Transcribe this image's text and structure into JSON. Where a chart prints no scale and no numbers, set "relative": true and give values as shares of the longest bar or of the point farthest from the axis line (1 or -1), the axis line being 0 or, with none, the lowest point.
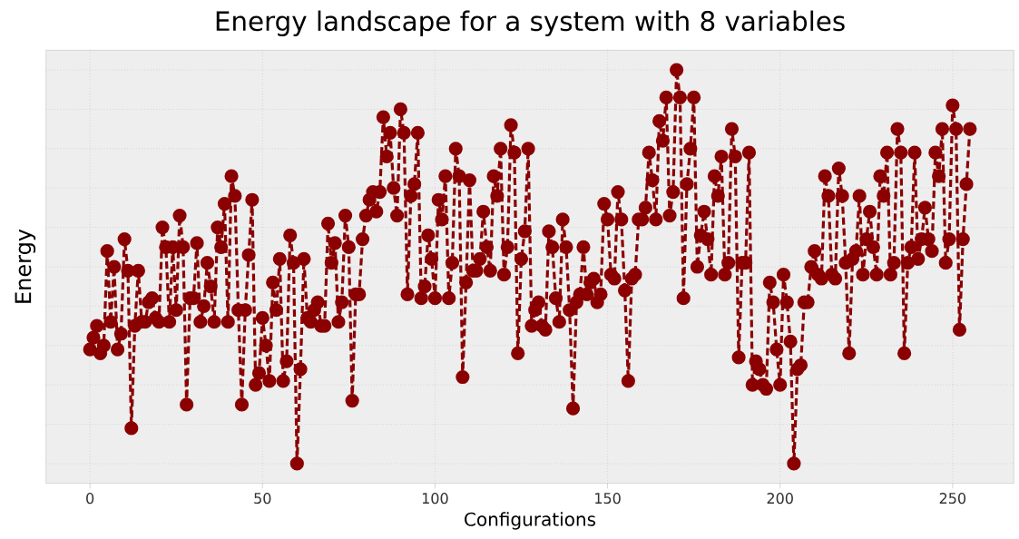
{
  "chart_data": {
    "type": "line",
    "title": "Energy landscape for a system with 8 variables",
    "xlabel": "Configurations",
    "ylabel": "Energy",
    "relative": true,
    "color": "#8b0000",
    "marker": "circle",
    "line_style": "dashed",
    "grid": true,
    "tick_labels": "x",
    "xlim": [
      -12.75,
      267.75
    ],
    "xticks": [
      0,
      50,
      100,
      150,
      200,
      250
    ],
    "x": [
      0,
      1,
      2,
      3,
      4,
      5,
      6,
      7,
      8,
      9,
      10,
      11,
      12,
      13,
      14,
      15,
      16,
      17,
      18,
      19,
      20,
      21,
      22,
      23,
      24,
      25,
      26,
      27,
      28,
      29,
      30,
      31,
      32,
      33,
      34,
      35,
      36,
      37,
      38,
      39,
      40,
      41,
      42,
      43,
      44,
      45,
      46,
      47,
      48,
      49,
      50,
      51,
      52,
      53,
      54,
      55,
      56,
      57,
      58,
      59,
      60,
      61,
      62,
      63,
      64,
      65,
      66,
      67,
      68,
      69,
      70,
      71,
      72,
      73,
      74,
      75,
      76,
      77,
      78,
      79,
      80,
      81,
      82,
      83,
      84,
      85,
      86,
      87,
      88,
      89,
      90,
      91,
      92,
      93,
      94,
      95,
      96,
      97,
      98,
      99,
      100,
      101,
      102,
      103,
      104,
      105,
      106,
      107,
      108,
      109,
      110,
      111,
      112,
      113,
      114,
      115,
      116,
      117,
      118,
      119,
      120,
      121,
      122,
      123,
      124,
      125,
      126,
      127,
      128,
      129,
      130,
      131,
      132,
      133,
      134,
      135,
      136,
      137,
      138,
      139,
      140,
      141,
      142,
      143,
      144,
      145,
      146,
      147,
      148,
      149,
      150,
      151,
      152,
      153,
      154,
      155,
      156,
      157,
      158,
      159,
      160,
      161,
      162,
      163,
      164,
      165,
      166,
      167,
      168,
      169,
      170,
      171,
      172,
      173,
      174,
      175,
      176,
      177,
      178,
      179,
      180,
      181,
      182,
      183,
      184,
      185,
      186,
      187,
      188,
      189,
      190,
      191,
      192,
      193,
      194,
      195,
      196,
      197,
      198,
      199,
      200,
      201,
      202,
      203,
      204,
      205,
      206,
      207,
      208,
      209,
      210,
      211,
      212,
      213,
      214,
      215,
      216,
      217,
      218,
      219,
      220,
      221,
      222,
      223,
      224,
      225,
      226,
      227,
      228,
      229,
      230,
      231,
      232,
      233,
      234,
      235,
      236,
      237,
      238,
      239,
      240,
      241,
      242,
      243,
      244,
      245,
      246,
      247,
      248,
      249,
      250,
      251,
      252,
      253,
      254,
      255
    ],
    "values": [
      0.29,
      0.32,
      0.35,
      0.28,
      0.3,
      0.54,
      0.36,
      0.5,
      0.29,
      0.33,
      0.57,
      0.49,
      0.09,
      0.35,
      0.49,
      0.36,
      0.36,
      0.41,
      0.42,
      0.37,
      0.36,
      0.6,
      0.55,
      0.36,
      0.55,
      0.39,
      0.63,
      0.55,
      0.15,
      0.42,
      0.42,
      0.56,
      0.36,
      0.4,
      0.51,
      0.45,
      0.36,
      0.6,
      0.55,
      0.66,
      0.36,
      0.73,
      0.68,
      0.39,
      0.15,
      0.39,
      0.53,
      0.67,
      0.2,
      0.23,
      0.37,
      0.3,
      0.21,
      0.46,
      0.39,
      0.52,
      0.21,
      0.26,
      0.58,
      0.51,
      0,
      0.24,
      0.52,
      0.37,
      0.36,
      0.39,
      0.41,
      0.35,
      0.35,
      0.61,
      0.51,
      0.56,
      0.36,
      0.41,
      0.63,
      0.55,
      0.16,
      0.43,
      0.43,
      0.57,
      0.63,
      0.67,
      0.69,
      0.64,
      0.69,
      0.88,
      0.78,
      0.84,
      0.7,
      0.63,
      0.9,
      0.84,
      0.43,
      0.68,
      0.71,
      0.84,
      0.42,
      0.45,
      0.58,
      0.52,
      0.42,
      0.67,
      0.62,
      0.73,
      0.42,
      0.51,
      0.8,
      0.73,
      0.22,
      0.46,
      0.72,
      0.49,
      0.49,
      0.52,
      0.64,
      0.55,
      0.49,
      0.73,
      0.68,
      0.8,
      0.48,
      0.55,
      0.86,
      0.79,
      0.28,
      0.52,
      0.59,
      0.8,
      0.35,
      0.39,
      0.41,
      0.35,
      0.34,
      0.59,
      0.55,
      0.42,
      0.36,
      0.62,
      0.55,
      0.39,
      0.14,
      0.41,
      0.43,
      0.55,
      0.43,
      0.46,
      0.47,
      0.41,
      0.43,
      0.66,
      0.62,
      0.48,
      0.47,
      0.69,
      0.62,
      0.44,
      0.21,
      0.47,
      0.48,
      0.62,
      0.62,
      0.65,
      0.79,
      0.72,
      0.62,
      0.87,
      0.82,
      0.93,
      0.63,
      0.69,
      1.0,
      0.93,
      0.42,
      0.71,
      0.8,
      0.93,
      0.5,
      0.58,
      0.64,
      0.57,
      0.48,
      0.73,
      0.68,
      0.78,
      0.48,
      0.51,
      0.85,
      0.78,
      0.27,
      0.51,
      0.51,
      0.79,
      0.2,
      0.26,
      0.24,
      0.2,
      0.19,
      0.46,
      0.41,
      0.29,
      0.2,
      0.48,
      0.41,
      0.31,
      0,
      0.24,
      0.25,
      0.41,
      0.41,
      0.5,
      0.54,
      0.48,
      0.47,
      0.73,
      0.68,
      0.48,
      0.47,
      0.75,
      0.68,
      0.51,
      0.28,
      0.52,
      0.54,
      0.68,
      0.48,
      0.57,
      0.64,
      0.55,
      0.48,
      0.73,
      0.68,
      0.79,
      0.48,
      0.51,
      0.85,
      0.79,
      0.28,
      0.51,
      0.55,
      0.79,
      0.52,
      0.57,
      0.65,
      0.57,
      0.54,
      0.79,
      0.73,
      0.85,
      0.51,
      0.57,
      0.91,
      0.85,
      0.34,
      0.57,
      0.71,
      0.85
    ]
  }
}
